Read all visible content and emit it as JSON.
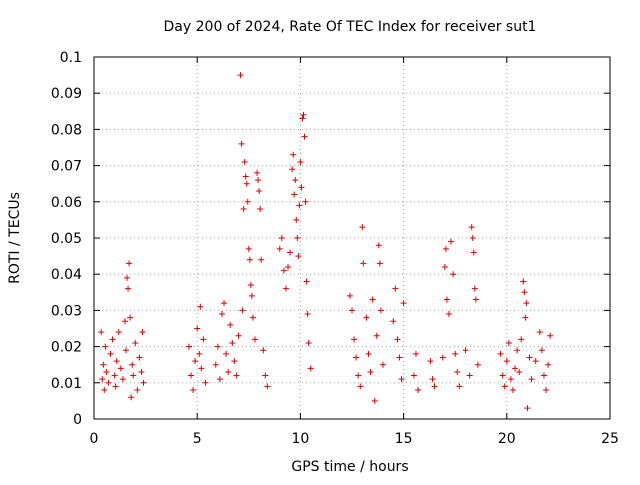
{
  "chart_data": {
    "type": "scatter",
    "title": "Day 200 of 2024, Rate Of TEC Index for receiver sut1",
    "xlabel": "GPS time / hours",
    "ylabel": "ROTI / TECUs",
    "xlim": [
      0,
      25
    ],
    "ylim": [
      0,
      0.1
    ],
    "x_ticks": [
      0,
      5,
      10,
      15,
      20,
      25
    ],
    "x_tick_labels": [
      "0",
      "5",
      "10",
      "15",
      "20",
      "25"
    ],
    "y_ticks": [
      0,
      0.01,
      0.02,
      0.03,
      0.04,
      0.05,
      0.06,
      0.07,
      0.08,
      0.09,
      0.1
    ],
    "y_tick_labels": [
      "0",
      "0.01",
      "0.02",
      "0.03",
      "0.04",
      "0.05",
      "0.06",
      "0.07",
      "0.08",
      "0.09",
      "0.1"
    ],
    "grid": true,
    "legend": "none",
    "marker": "+",
    "marker_color": "#e00000",
    "series": [
      {
        "points": [
          [
            0.35,
            0.024
          ],
          [
            0.4,
            0.011
          ],
          [
            0.45,
            0.015
          ],
          [
            0.5,
            0.008
          ],
          [
            0.55,
            0.02
          ],
          [
            0.6,
            0.013
          ],
          [
            0.7,
            0.01
          ],
          [
            0.8,
            0.018
          ],
          [
            0.9,
            0.022
          ],
          [
            1.0,
            0.012
          ],
          [
            1.05,
            0.009
          ],
          [
            1.1,
            0.016
          ],
          [
            1.2,
            0.024
          ],
          [
            1.3,
            0.014
          ],
          [
            1.4,
            0.011
          ],
          [
            1.5,
            0.027
          ],
          [
            1.55,
            0.019
          ],
          [
            1.6,
            0.039
          ],
          [
            1.65,
            0.036
          ],
          [
            1.7,
            0.043
          ],
          [
            1.75,
            0.028
          ],
          [
            1.8,
            0.006
          ],
          [
            1.85,
            0.015
          ],
          [
            1.9,
            0.012
          ],
          [
            2.0,
            0.021
          ],
          [
            2.1,
            0.008
          ],
          [
            2.2,
            0.017
          ],
          [
            2.3,
            0.013
          ],
          [
            2.35,
            0.024
          ],
          [
            2.4,
            0.01
          ],
          [
            4.6,
            0.02
          ],
          [
            4.7,
            0.012
          ],
          [
            4.8,
            0.008
          ],
          [
            4.9,
            0.016
          ],
          [
            5.0,
            0.025
          ],
          [
            5.1,
            0.018
          ],
          [
            5.15,
            0.031
          ],
          [
            5.2,
            0.014
          ],
          [
            5.3,
            0.022
          ],
          [
            5.4,
            0.01
          ],
          [
            5.9,
            0.015
          ],
          [
            6.0,
            0.02
          ],
          [
            6.1,
            0.011
          ],
          [
            6.2,
            0.029
          ],
          [
            6.3,
            0.032
          ],
          [
            6.4,
            0.018
          ],
          [
            6.5,
            0.013
          ],
          [
            6.6,
            0.026
          ],
          [
            6.7,
            0.021
          ],
          [
            6.8,
            0.016
          ],
          [
            6.9,
            0.012
          ],
          [
            7.0,
            0.023
          ],
          [
            7.1,
            0.095
          ],
          [
            7.15,
            0.076
          ],
          [
            7.2,
            0.03
          ],
          [
            7.25,
            0.058
          ],
          [
            7.3,
            0.071
          ],
          [
            7.35,
            0.067
          ],
          [
            7.4,
            0.065
          ],
          [
            7.45,
            0.06
          ],
          [
            7.5,
            0.047
          ],
          [
            7.55,
            0.044
          ],
          [
            7.6,
            0.037
          ],
          [
            7.65,
            0.034
          ],
          [
            7.7,
            0.028
          ],
          [
            7.8,
            0.022
          ],
          [
            7.9,
            0.068
          ],
          [
            7.95,
            0.066
          ],
          [
            8.0,
            0.063
          ],
          [
            8.05,
            0.058
          ],
          [
            8.1,
            0.044
          ],
          [
            8.2,
            0.019
          ],
          [
            8.3,
            0.012
          ],
          [
            8.4,
            0.009
          ],
          [
            9.0,
            0.047
          ],
          [
            9.1,
            0.05
          ],
          [
            9.2,
            0.041
          ],
          [
            9.3,
            0.036
          ],
          [
            9.4,
            0.042
          ],
          [
            9.5,
            0.046
          ],
          [
            9.6,
            0.069
          ],
          [
            9.65,
            0.073
          ],
          [
            9.7,
            0.062
          ],
          [
            9.75,
            0.066
          ],
          [
            9.8,
            0.055
          ],
          [
            9.85,
            0.05
          ],
          [
            9.9,
            0.045
          ],
          [
            9.95,
            0.059
          ],
          [
            10.0,
            0.071
          ],
          [
            10.05,
            0.064
          ],
          [
            10.1,
            0.083
          ],
          [
            10.15,
            0.084
          ],
          [
            10.2,
            0.078
          ],
          [
            10.25,
            0.06
          ],
          [
            10.3,
            0.038
          ],
          [
            10.35,
            0.029
          ],
          [
            10.4,
            0.021
          ],
          [
            10.5,
            0.014
          ],
          [
            12.4,
            0.034
          ],
          [
            12.5,
            0.03
          ],
          [
            12.6,
            0.022
          ],
          [
            12.7,
            0.017
          ],
          [
            12.8,
            0.012
          ],
          [
            12.9,
            0.009
          ],
          [
            13.0,
            0.053
          ],
          [
            13.05,
            0.043
          ],
          [
            13.2,
            0.028
          ],
          [
            13.3,
            0.018
          ],
          [
            13.4,
            0.013
          ],
          [
            13.5,
            0.033
          ],
          [
            13.6,
            0.005
          ],
          [
            13.7,
            0.023
          ],
          [
            13.8,
            0.048
          ],
          [
            13.85,
            0.043
          ],
          [
            13.9,
            0.03
          ],
          [
            14.0,
            0.015
          ],
          [
            14.5,
            0.027
          ],
          [
            14.6,
            0.036
          ],
          [
            14.7,
            0.022
          ],
          [
            14.8,
            0.017
          ],
          [
            14.9,
            0.011
          ],
          [
            15.0,
            0.032
          ],
          [
            15.5,
            0.012
          ],
          [
            15.6,
            0.018
          ],
          [
            15.7,
            0.008
          ],
          [
            16.3,
            0.016
          ],
          [
            16.4,
            0.011
          ],
          [
            16.5,
            0.009
          ],
          [
            16.9,
            0.017
          ],
          [
            17.0,
            0.042
          ],
          [
            17.05,
            0.047
          ],
          [
            17.1,
            0.033
          ],
          [
            17.2,
            0.029
          ],
          [
            17.3,
            0.049
          ],
          [
            17.4,
            0.04
          ],
          [
            17.5,
            0.018
          ],
          [
            17.6,
            0.013
          ],
          [
            17.7,
            0.009
          ],
          [
            18.0,
            0.019
          ],
          [
            18.2,
            0.012
          ],
          [
            18.3,
            0.053
          ],
          [
            18.35,
            0.05
          ],
          [
            18.4,
            0.046
          ],
          [
            18.45,
            0.036
          ],
          [
            18.5,
            0.033
          ],
          [
            18.6,
            0.015
          ],
          [
            19.7,
            0.018
          ],
          [
            19.8,
            0.012
          ],
          [
            19.9,
            0.009
          ],
          [
            20.0,
            0.016
          ],
          [
            20.1,
            0.021
          ],
          [
            20.2,
            0.011
          ],
          [
            20.3,
            0.008
          ],
          [
            20.4,
            0.014
          ],
          [
            20.5,
            0.019
          ],
          [
            20.6,
            0.013
          ],
          [
            20.7,
            0.022
          ],
          [
            20.8,
            0.038
          ],
          [
            20.85,
            0.035
          ],
          [
            20.9,
            0.028
          ],
          [
            20.95,
            0.032
          ],
          [
            21.0,
            0.003
          ],
          [
            21.1,
            0.017
          ],
          [
            21.2,
            0.011
          ],
          [
            21.4,
            0.016
          ],
          [
            21.6,
            0.024
          ],
          [
            21.7,
            0.019
          ],
          [
            21.8,
            0.012
          ],
          [
            21.9,
            0.008
          ],
          [
            22.0,
            0.015
          ],
          [
            22.1,
            0.023
          ]
        ]
      }
    ]
  }
}
